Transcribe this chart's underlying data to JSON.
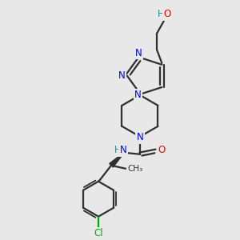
{
  "background_color": "#e8e8e8",
  "atom_colors": {
    "C": "#303030",
    "N": "#0000ee",
    "O": "#ee0000",
    "Cl": "#00aa00",
    "H": "#408080"
  },
  "bond_color": "#303030",
  "line_width": 1.6,
  "fig_size": [
    3.0,
    3.0
  ],
  "dpi": 100
}
